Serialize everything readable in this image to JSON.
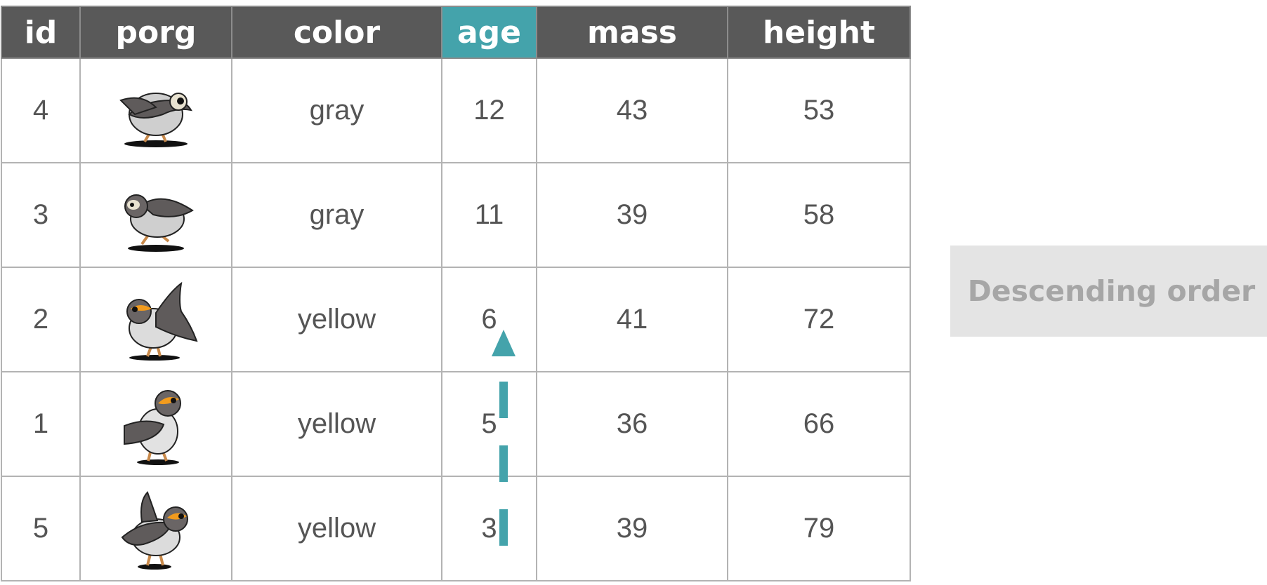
{
  "table": {
    "columns": [
      "id",
      "porg",
      "color",
      "age",
      "mass",
      "height"
    ],
    "highlighted_column": "age",
    "highlight_color": "#44a3ab",
    "header_color": "#595959",
    "rows": [
      {
        "id": "4",
        "porg": "porg-gray-flying-right-icon",
        "color": "gray",
        "age": "12",
        "mass": "43",
        "height": "53"
      },
      {
        "id": "3",
        "porg": "porg-gray-running-left-icon",
        "color": "gray",
        "age": "11",
        "mass": "39",
        "height": "58"
      },
      {
        "id": "2",
        "porg": "porg-yellow-wings-up-icon",
        "color": "yellow",
        "age": "6",
        "mass": "41",
        "height": "72"
      },
      {
        "id": "1",
        "porg": "porg-yellow-standing-icon",
        "color": "yellow",
        "age": "5",
        "mass": "36",
        "height": "66"
      },
      {
        "id": "5",
        "porg": "porg-yellow-walking-icon",
        "color": "yellow",
        "age": "3",
        "mass": "39",
        "height": "79"
      }
    ]
  },
  "annotation": {
    "label": "Descending order",
    "arrow": "dashed-up-arrow-icon"
  }
}
